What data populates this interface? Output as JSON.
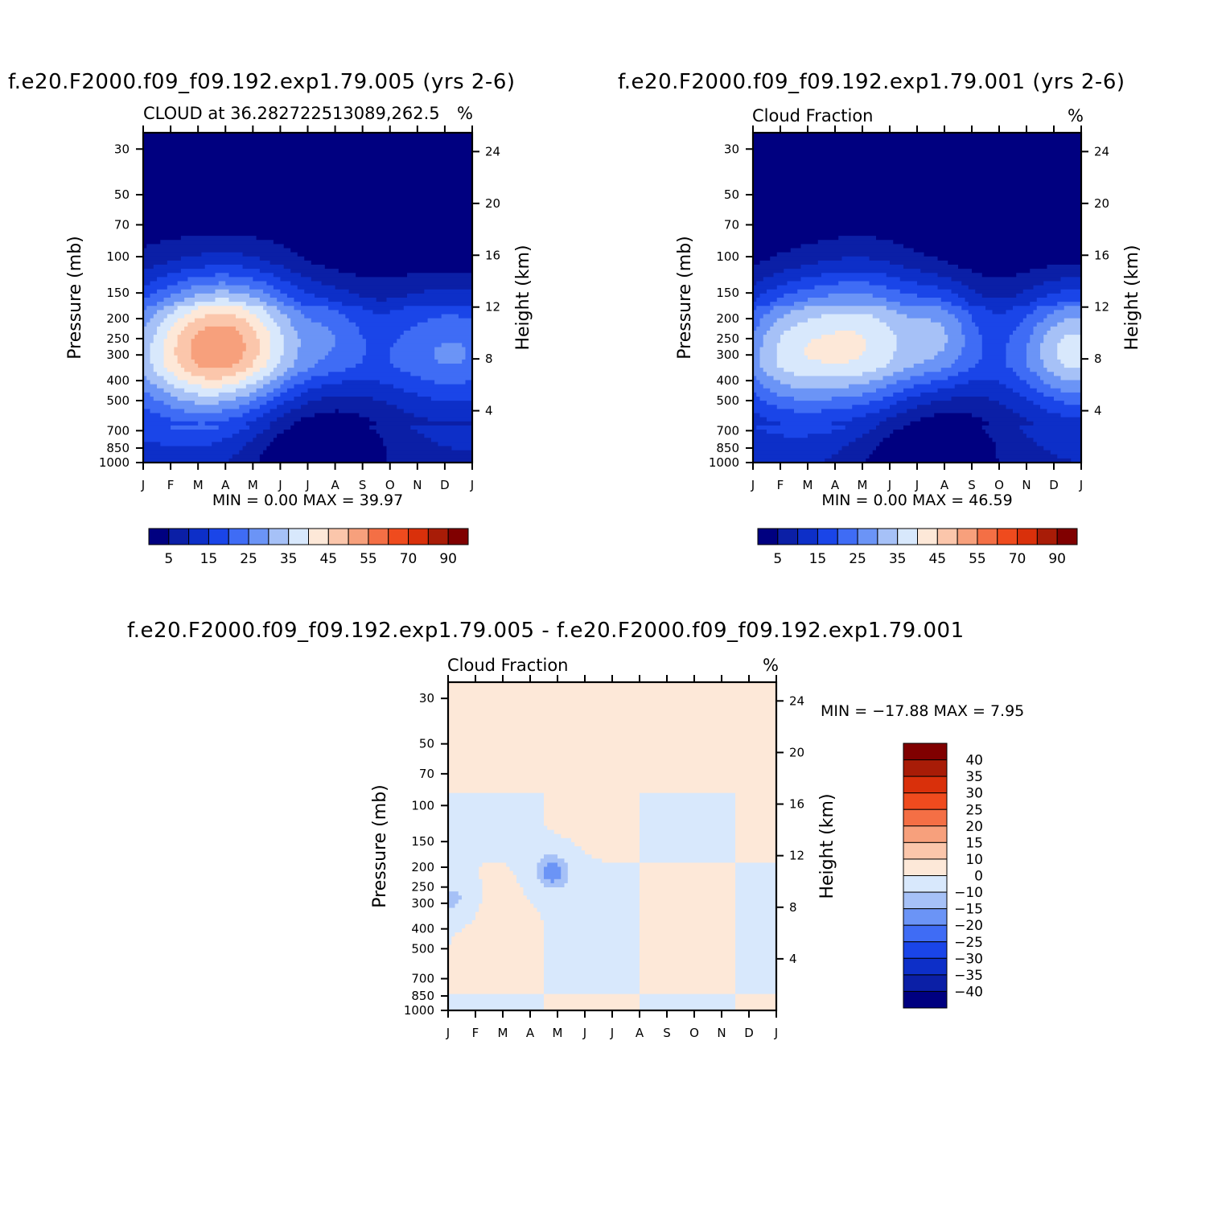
{
  "chart_data": [
    {
      "type": "heatmap",
      "title": "f.e20.F2000.f09_f09.192.exp1.79.005 (yrs 2-6)",
      "subtitle": "CLOUD at 36.282722513089,262.5",
      "units": "%",
      "ylabel": "Pressure (mb)",
      "y2label": "Height (km)",
      "x": [
        "J",
        "F",
        "M",
        "A",
        "M",
        "J",
        "J",
        "A",
        "S",
        "O",
        "N",
        "D",
        "J"
      ],
      "pressure_ticks": [
        30,
        50,
        70,
        100,
        150,
        200,
        250,
        300,
        400,
        500,
        700,
        850,
        1000
      ],
      "height_ticks": [
        24,
        20,
        16,
        12,
        8,
        4
      ],
      "ylim": [
        1000,
        25
      ],
      "min": "0.00",
      "max": "39.97",
      "levels": [
        5,
        10,
        15,
        20,
        25,
        30,
        35,
        40,
        45,
        50,
        55,
        60,
        70,
        80,
        90
      ],
      "colorbar_labels": [
        "5",
        "15",
        "25",
        "35",
        "45",
        "55",
        "70",
        "90"
      ],
      "palette": [
        "#000080",
        "#0b1fa6",
        "#0d2fc8",
        "#1a45e8",
        "#3f6cf5",
        "#6b94f6",
        "#a6c1f7",
        "#d8e8fc",
        "#fde8d8",
        "#fbc6ab",
        "#f7a07c",
        "#f46f45",
        "#ef4b1e",
        "#d9300b",
        "#a81c07",
        "#800000"
      ],
      "field_peaks": [
        {
          "month": 0,
          "p": 270,
          "v": 12,
          "wm": 3.4,
          "wl": 0.7
        },
        {
          "month": 2,
          "p": 280,
          "v": 22,
          "wm": 1.6,
          "wl": 0.55
        },
        {
          "month": 4,
          "p": 245,
          "v": 23,
          "wm": 1.7,
          "wl": 0.55
        },
        {
          "month": 7,
          "p": 235,
          "v": 8,
          "wm": 0.9,
          "wl": 0.35
        },
        {
          "month": 10,
          "p": 270,
          "v": 10,
          "wm": 1.8,
          "wl": 0.5
        },
        {
          "month": 12,
          "p": 270,
          "v": 10,
          "wm": 1.5,
          "wl": 0.5
        }
      ],
      "max_month": 4,
      "max_p": 240
    },
    {
      "type": "heatmap",
      "title": "f.e20.F2000.f09_f09.192.exp1.79.001 (yrs 2-6)",
      "subtitle": "Cloud Fraction",
      "units": "%",
      "ylabel": "Pressure (mb)",
      "y2label": "Height (km)",
      "x": [
        "J",
        "F",
        "M",
        "A",
        "M",
        "J",
        "J",
        "A",
        "S",
        "O",
        "N",
        "D",
        "J"
      ],
      "pressure_ticks": [
        30,
        50,
        70,
        100,
        150,
        200,
        250,
        300,
        400,
        500,
        700,
        850,
        1000
      ],
      "height_ticks": [
        24,
        20,
        16,
        12,
        8,
        4
      ],
      "ylim": [
        1000,
        25
      ],
      "min": "0.00",
      "max": "46.59",
      "levels": [
        5,
        10,
        15,
        20,
        25,
        30,
        35,
        40,
        45,
        50,
        55,
        60,
        70,
        80,
        90
      ],
      "colorbar_labels": [
        "5",
        "15",
        "25",
        "35",
        "45",
        "55",
        "70",
        "90"
      ],
      "palette": [
        "#000080",
        "#0b1fa6",
        "#0d2fc8",
        "#1a45e8",
        "#3f6cf5",
        "#6b94f6",
        "#a6c1f7",
        "#d8e8fc",
        "#fde8d8",
        "#fbc6ab",
        "#f7a07c",
        "#f46f45",
        "#ef4b1e",
        "#d9300b",
        "#a81c07",
        "#800000"
      ],
      "field_peaks": [
        {
          "month": 1,
          "p": 285,
          "v": 20,
          "wm": 1.4,
          "wl": 0.55
        },
        {
          "month": 4,
          "p": 250,
          "v": 30,
          "wm": 1.8,
          "wl": 0.6
        },
        {
          "month": 7,
          "p": 230,
          "v": 14,
          "wm": 1.0,
          "wl": 0.4
        },
        {
          "month": 11,
          "p": 270,
          "v": 14,
          "wm": 1.8,
          "wl": 0.5
        },
        {
          "month": 12,
          "p": 280,
          "v": 16,
          "wm": 1.2,
          "wl": 0.5
        }
      ],
      "max_month": 4,
      "max_p": 240
    },
    {
      "type": "heatmap",
      "title": "f.e20.F2000.f09_f09.192.exp1.79.005 - f.e20.F2000.f09_f09.192.exp1.79.001",
      "subtitle": "Cloud Fraction",
      "units": "%",
      "ylabel": "Pressure (mb)",
      "y2label": "Height (km)",
      "x": [
        "J",
        "F",
        "M",
        "A",
        "M",
        "J",
        "J",
        "A",
        "S",
        "O",
        "N",
        "D",
        "J"
      ],
      "pressure_ticks": [
        30,
        50,
        70,
        100,
        150,
        200,
        250,
        300,
        400,
        500,
        700,
        850,
        1000
      ],
      "height_ticks": [
        24,
        20,
        16,
        12,
        8,
        4
      ],
      "ylim": [
        1000,
        25
      ],
      "min": "-17.88",
      "max": "7.95",
      "levels": [
        -40,
        -35,
        -30,
        -25,
        -20,
        -15,
        -10,
        0,
        10,
        15,
        20,
        25,
        30,
        35,
        40
      ],
      "colorbar_labels": [
        "40",
        "35",
        "30",
        "25",
        "20",
        "15",
        "10",
        "0",
        "-10",
        "-15",
        "-20",
        "-25",
        "-30",
        "-35",
        "-40"
      ],
      "palette": [
        "#000080",
        "#0b1fa6",
        "#0d2fc8",
        "#1a45e8",
        "#3f6cf5",
        "#6b94f6",
        "#a6c1f7",
        "#d8e8fc",
        "#fde8d8",
        "#fbc6ab",
        "#f7a07c",
        "#f46f45",
        "#ef4b1e",
        "#d9300b",
        "#a81c07",
        "#800000"
      ],
      "diff_negative_spots": [
        {
          "month": 3.8,
          "p": 210,
          "v": -18
        },
        {
          "month": 0.2,
          "p": 285,
          "v": -12
        }
      ]
    }
  ]
}
